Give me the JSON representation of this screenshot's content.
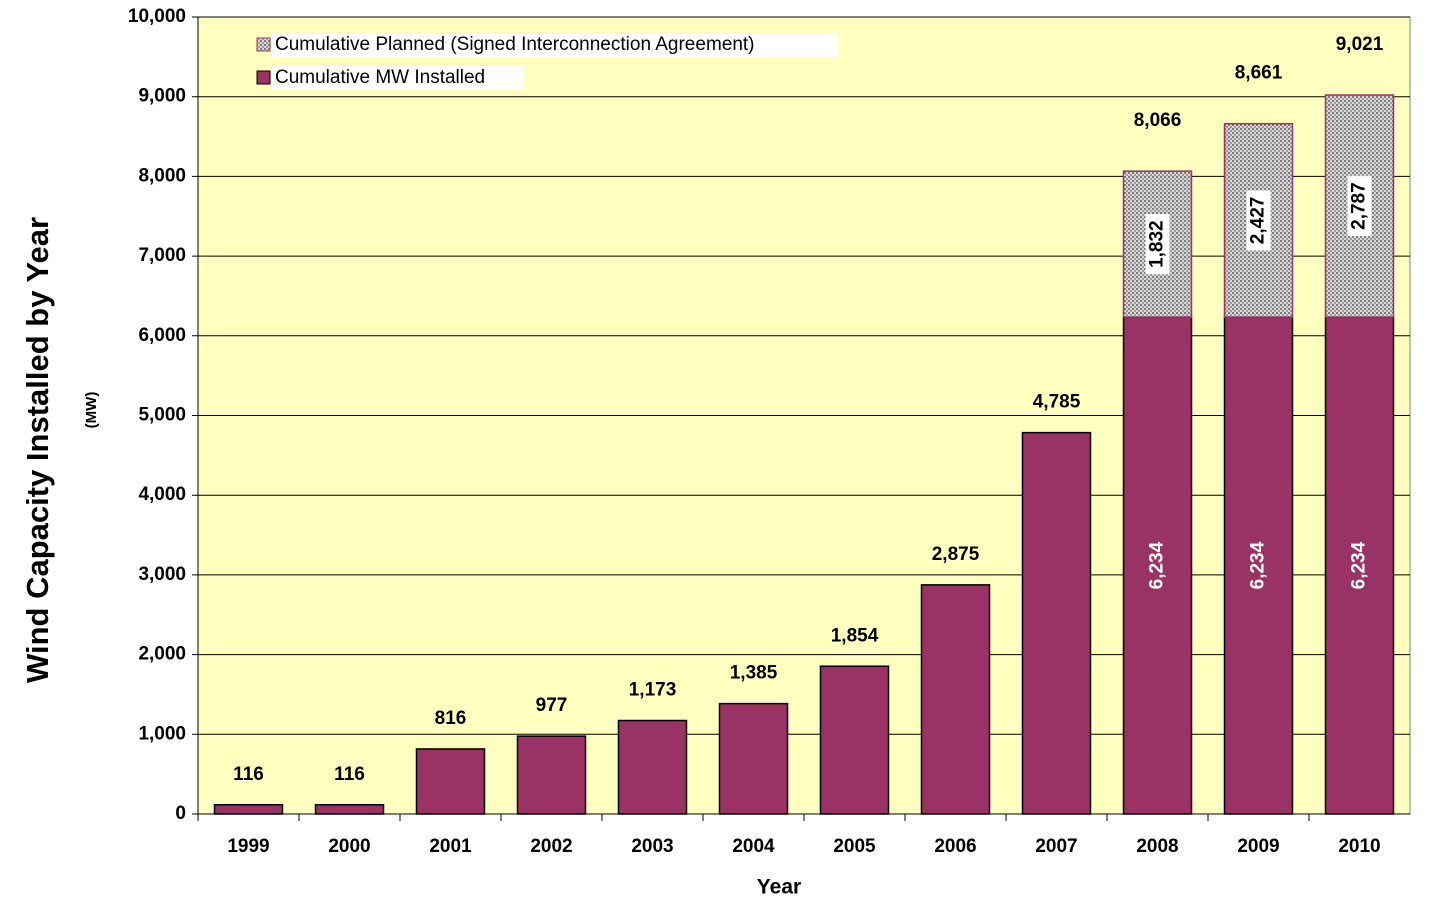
{
  "chart_data": {
    "type": "stacked_bar",
    "y_label": "Wind Capacity Installed by Year",
    "y_unit_label": "(MW)",
    "x_label": "Year",
    "categories": [
      "1999",
      "2000",
      "2001",
      "2002",
      "2003",
      "2004",
      "2005",
      "2006",
      "2007",
      "2008",
      "2009",
      "2010"
    ],
    "series": [
      {
        "name": "Cumulative MW Installed",
        "color": "#993366",
        "values": [
          116,
          116,
          816,
          977,
          1173,
          1385,
          1854,
          2875,
          4785,
          6234,
          6234,
          6234
        ],
        "value_labels": [
          "116",
          "116",
          "816",
          "977",
          "1,173",
          "1,385",
          "1,854",
          "2,875",
          "4,785",
          "6,234",
          "6,234",
          "6,234"
        ]
      },
      {
        "name": "Cumulative Planned (Signed Interconnection Agreement)",
        "color": "#b0b0b0",
        "values": [
          null,
          null,
          null,
          null,
          null,
          null,
          null,
          null,
          null,
          1832,
          2427,
          2787
        ],
        "value_labels": [
          null,
          null,
          null,
          null,
          null,
          null,
          null,
          null,
          null,
          "1,832",
          "2,427",
          "2,787"
        ]
      }
    ],
    "totals": [
      null,
      null,
      null,
      null,
      null,
      null,
      null,
      null,
      null,
      8066,
      8661,
      9021
    ],
    "total_labels": [
      null,
      null,
      null,
      null,
      null,
      null,
      null,
      null,
      null,
      "8,066",
      "8,661",
      "9,021"
    ],
    "ylim": [
      0,
      10000
    ],
    "yticks": [
      0,
      {
        "value": 1000,
        "label": "1,000"
      },
      {
        "value": 2000,
        "label": "2,000"
      },
      {
        "value": 3000,
        "label": "3,000"
      },
      {
        "value": 4000,
        "label": "4,000"
      },
      {
        "value": 5000,
        "label": "5,000"
      },
      {
        "value": 6000,
        "label": "6,000"
      },
      {
        "value": 7000,
        "label": "7,000"
      },
      {
        "value": 8000,
        "label": "8,000"
      },
      {
        "value": 9000,
        "label": "9,000"
      },
      {
        "value": 10000,
        "label": "10,000"
      }
    ],
    "grid": true,
    "legend": "top-left",
    "plot_background": "#ffffc0"
  }
}
